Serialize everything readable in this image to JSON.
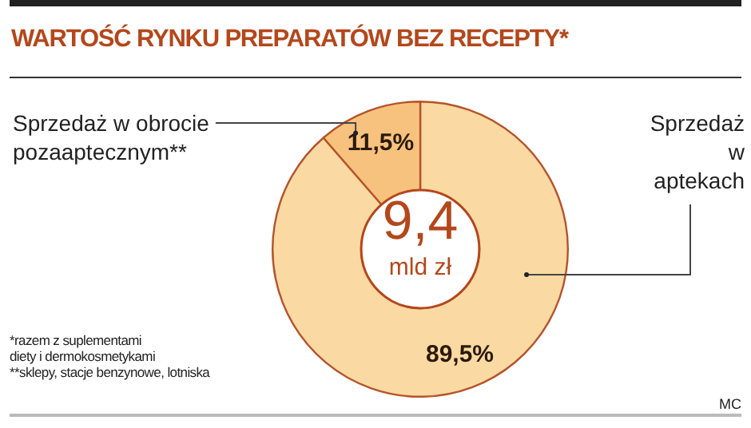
{
  "chart_data": {
    "type": "donut",
    "title": "WARTOŚĆ RYNKU PREPARATÓW BEZ RECEPTY*",
    "categories": [
      "Sprzedaż w aptekach",
      "Sprzedaż w obrocie pozaaptecznym**"
    ],
    "values": [
      89.5,
      11.5
    ],
    "colors": [
      "#fbd9a2",
      "#f7c27e"
    ],
    "value_labels": [
      "89,5%",
      "11,5%"
    ],
    "annotations": [
      "9,4 mld zł",
      "*razem z suplementami diety i dermokosmetykami",
      "**sklepy, stacje benzynowe, lotniska",
      "MC"
    ]
  }
}
